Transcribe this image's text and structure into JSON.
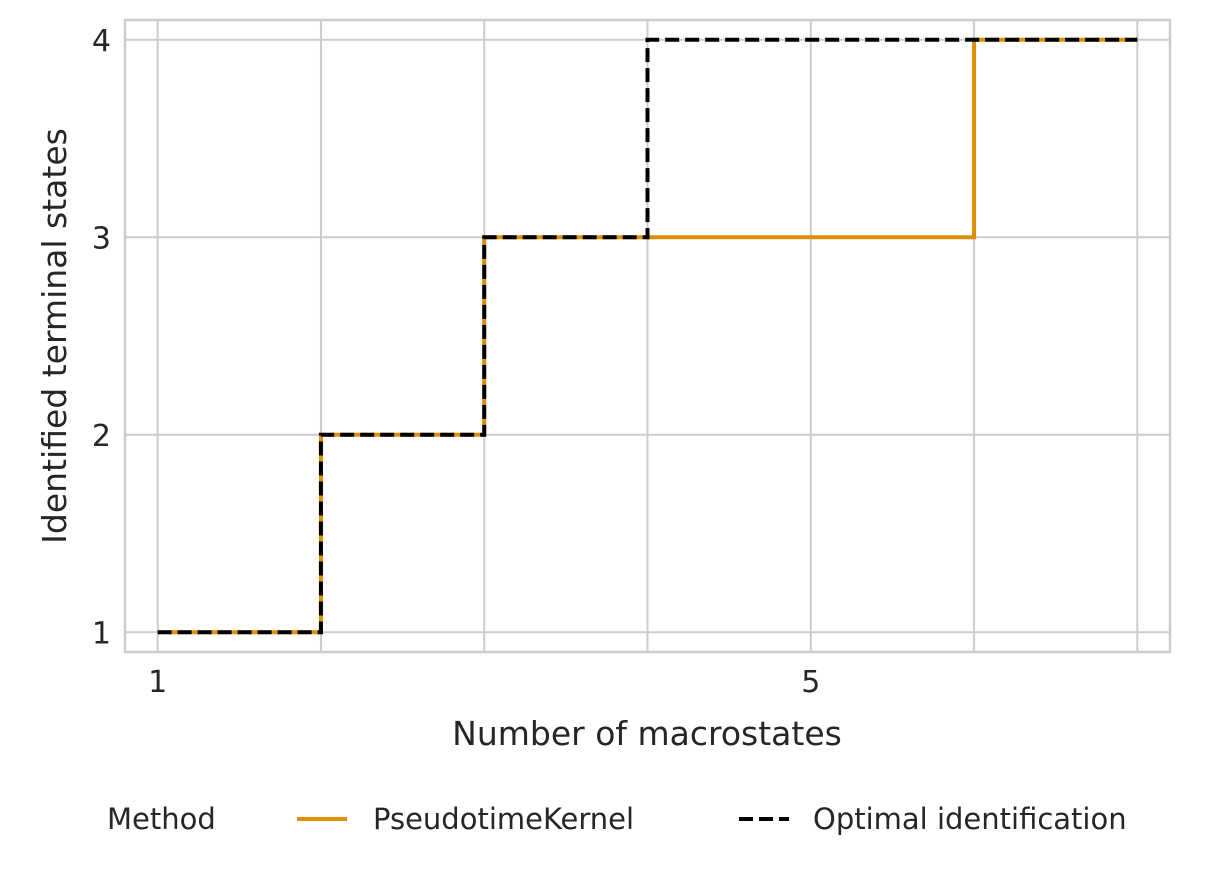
{
  "chart_data": {
    "type": "line",
    "step": "post",
    "xlabel": "Number of macrostates",
    "ylabel": "Identified terminal states",
    "xlim": [
      0.8,
      7.2
    ],
    "ylim": [
      0.9,
      4.1
    ],
    "xticks": [
      1,
      5
    ],
    "yticks": [
      1,
      2,
      3,
      4
    ],
    "x_grid": [
      1,
      2,
      3,
      4,
      5,
      6,
      7
    ],
    "grid": true,
    "legend": {
      "title": "Method",
      "placement": "bottom",
      "entries": [
        "PseudotimeKernel",
        "Optimal identification"
      ]
    },
    "series": [
      {
        "name": "PseudotimeKernel",
        "color": "#de8f05",
        "style": "solid",
        "x": [
          1,
          2,
          3,
          4,
          5,
          6,
          7
        ],
        "y": [
          1,
          2,
          3,
          3,
          3,
          4,
          4
        ]
      },
      {
        "name": "Optimal identification",
        "color": "#000000",
        "style": "dashed",
        "x": [
          1,
          2,
          3,
          4,
          5,
          6,
          7
        ],
        "y": [
          1,
          2,
          3,
          4,
          4,
          4,
          4
        ]
      }
    ]
  }
}
